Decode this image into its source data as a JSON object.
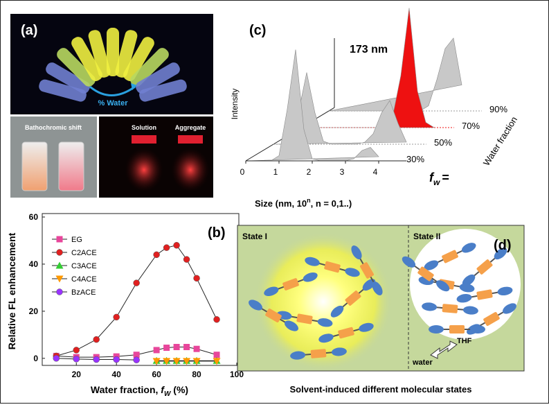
{
  "panel_a": {
    "label": "(a)",
    "arrow_label": "% Water",
    "photo_left_label": "Bathochromic shift",
    "photo_right_labels": [
      "Solution",
      "Aggregate"
    ]
  },
  "chart_data": [
    {
      "type": "line",
      "label": "(b)",
      "y_label": "Relative FL enhancement",
      "x_label": "Water fraction, ",
      "x_label_var": "f",
      "x_label_sub": "W",
      "x_label_unit": " (%)",
      "x": [
        10,
        20,
        30,
        40,
        50,
        60,
        65,
        70,
        75,
        80,
        90
      ],
      "xlim": [
        3,
        100
      ],
      "xticks": [
        20,
        40,
        60,
        80,
        100
      ],
      "ylim": [
        -3,
        60
      ],
      "yticks": [
        0,
        20,
        40,
        60
      ],
      "legend": "upper left",
      "series": [
        {
          "name": "EG",
          "color": "#e8469b",
          "marker": "square",
          "values": [
            1,
            0.5,
            0.5,
            0.8,
            1.5,
            3.5,
            4.5,
            4.8,
            4.8,
            4,
            1.5
          ]
        },
        {
          "name": "C2ACE",
          "color": "#e02020",
          "marker": "circle",
          "values": [
            1,
            3.5,
            8,
            17.5,
            32,
            44,
            47,
            48,
            42,
            34,
            16.5
          ]
        },
        {
          "name": "C3ACE",
          "color": "#33cc33",
          "marker": "triangle",
          "values": [
            null,
            null,
            null,
            null,
            null,
            -1,
            -1,
            -1,
            -1,
            -1,
            -1
          ]
        },
        {
          "name": "C4ACE",
          "color": "#ff9900",
          "marker": "triangle-down",
          "values": [
            null,
            null,
            null,
            null,
            null,
            -1.2,
            -1.2,
            -1.2,
            -1.2,
            -1.2,
            -1.2
          ]
        },
        {
          "name": "BzACE",
          "color": "#9933ff",
          "marker": "circle",
          "values": [
            0,
            -0.3,
            -0.5,
            -0.5,
            -0.7,
            null,
            null,
            null,
            null,
            null,
            null
          ]
        }
      ]
    },
    {
      "type": "ridgeline",
      "label": "(c)",
      "y_label": "Intensity",
      "annotation": "173 nm",
      "x_label": "Size (nm, 10",
      "x_label_sup": "n",
      "x_label_rest": ", n = 0,1..)",
      "z_label": "Water fraction",
      "z_var": "f",
      "z_sub": "w",
      "z_eq": "=",
      "xlim": [
        0,
        4
      ],
      "xticks": [
        0,
        1,
        2,
        3,
        4
      ],
      "x": [
        0,
        0.25,
        0.5,
        0.75,
        1,
        1.25,
        1.5,
        1.75,
        2,
        2.25,
        2.5,
        2.75,
        3,
        3.25,
        3.5,
        3.75,
        4
      ],
      "series": [
        {
          "name": "30%",
          "color": "#c8c8c8",
          "values": [
            0,
            0,
            0,
            0,
            0.05,
            0.5,
            1.07,
            0.3,
            0.02,
            0,
            0,
            0,
            0,
            0.02,
            0.1,
            0.13,
            0.04
          ]
        },
        {
          "name": "50%",
          "color": "#c8c8c8",
          "values": [
            0,
            0,
            0.02,
            0.3,
            0.69,
            0.3,
            0.03,
            0,
            0,
            0,
            0,
            0.02,
            0.1,
            0.3,
            0.42,
            0.2,
            0.02
          ]
        },
        {
          "name": "70%",
          "color": "#ee1111",
          "values": [
            0,
            0,
            0,
            0,
            0,
            0,
            0,
            0,
            0,
            0,
            0.02,
            0.1,
            0.5,
            1.15,
            0.35,
            0.05,
            0
          ]
        },
        {
          "name": "90%",
          "color": "#c8c8c8",
          "values": [
            0,
            0,
            0,
            0,
            0,
            0,
            0,
            0,
            0,
            0,
            0,
            0,
            0.05,
            0.3,
            0.6,
            0.7,
            0.25
          ]
        }
      ]
    }
  ],
  "panel_d": {
    "label": "(d)",
    "state_1": "State I",
    "state_2": "State II",
    "thf": "THF",
    "water": "water",
    "caption": "Solvent-induced different molecular states"
  }
}
